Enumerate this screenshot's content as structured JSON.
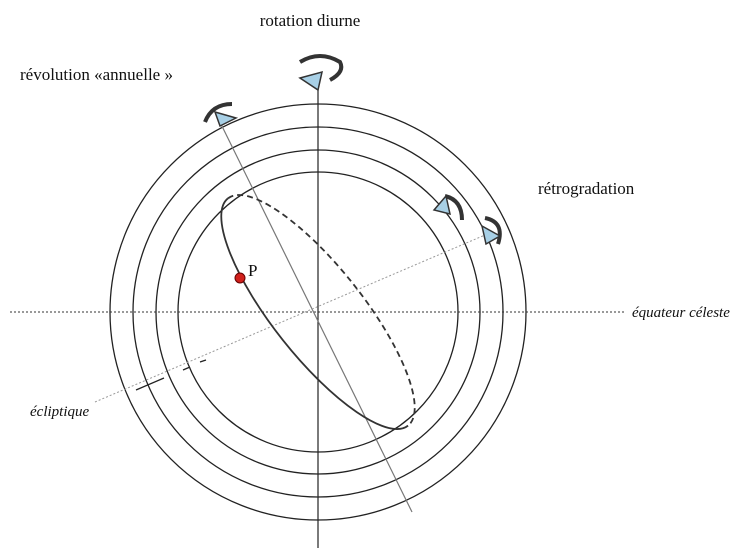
{
  "labels": {
    "rotation": "rotation diurne",
    "revolution": "révolution «annuelle »",
    "retrogradation": "rétrogradation",
    "equator": "équateur céleste",
    "ecliptic": "écliptique",
    "point": "P"
  }
}
